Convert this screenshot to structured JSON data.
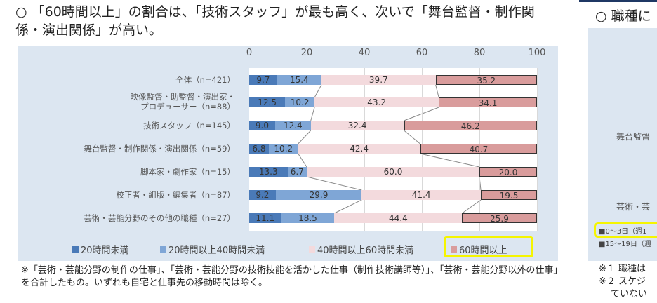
{
  "title": "○ 「60時間以上」の割合は、「技術スタッフ」が最も高く、次いで「舞台監督・制作関係・演出関係」が高い。",
  "chart_data": {
    "type": "bar",
    "orientation": "horizontal",
    "stacked": true,
    "xlim": [
      0,
      100
    ],
    "xticks": [
      "0",
      "20",
      "40",
      "60",
      "80",
      "100"
    ],
    "categories": [
      "全体（n=421）",
      "映像監督・助監督・演出家・プロデューサー（n=88）",
      "技術スタッフ（n=145）",
      "舞台監督・制作関係・演出関係（n=59）",
      "脚本家・劇作家（n=15）",
      "校正者・組版・編集者（n=87）",
      "芸術・芸能分野のその他の職種（n=27）"
    ],
    "series": [
      {
        "name": "20時間未満",
        "color": "#4a7ab8",
        "values": [
          9.7,
          12.5,
          9.0,
          6.8,
          13.3,
          9.2,
          11.1
        ]
      },
      {
        "name": "20時間以上40時間未満",
        "color": "#7fa6d6",
        "values": [
          15.4,
          10.2,
          12.4,
          10.2,
          6.7,
          29.9,
          18.5
        ]
      },
      {
        "name": "40時間以上60時間未満",
        "color": "#f3dadd",
        "values": [
          39.7,
          43.2,
          32.4,
          42.4,
          60.0,
          41.4,
          44.4
        ]
      },
      {
        "name": "60時間以上",
        "color": "#d99c9c",
        "values": [
          35.2,
          34.1,
          46.2,
          40.7,
          20.0,
          19.5,
          25.9
        ]
      }
    ],
    "legend": "bottom",
    "highlighted_legend": "60時間以上",
    "highlight_color": "#f5f500"
  },
  "note": "※「芸術・芸能分野の制作の仕事」、「芸術・芸能分野の技術技能を活かした仕事（制作技術講師等）」、「芸術・芸能分野以外の仕事」を合計したもの。いずれも自宅と仕事先の移動時間は除く。",
  "right": {
    "title": "○ 職種に",
    "cat1": "舞台監督",
    "cat2": "芸術・芸",
    "leg1": "■0～3日（週1",
    "leg2": "■15～19日（週",
    "note1": "※１ 職種は",
    "note2": "※２ スケジ",
    "note3": "ていない"
  }
}
